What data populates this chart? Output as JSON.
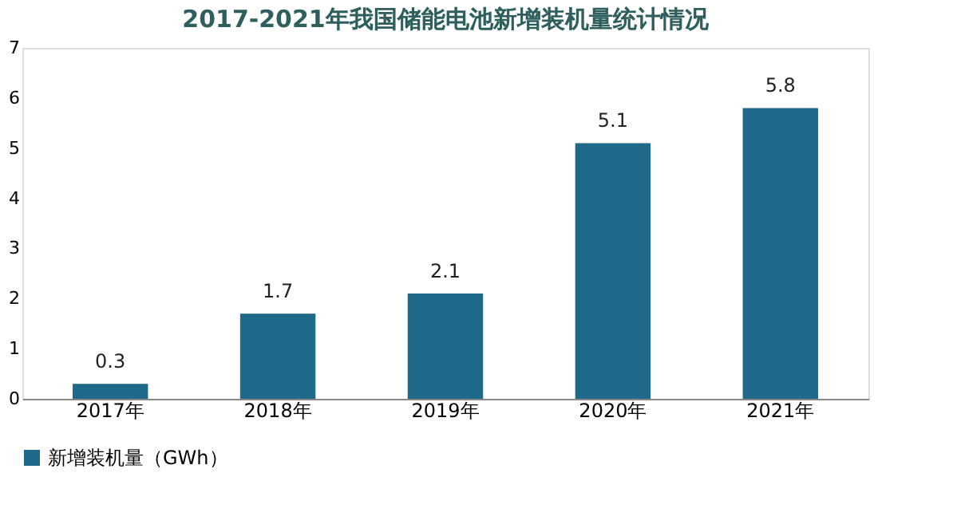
{
  "chart_data": {
    "type": "bar",
    "title": "2017-2021年我国储能电池新增装机量统计情况",
    "categories": [
      "2017年",
      "2018年",
      "2019年",
      "2020年",
      "2021年"
    ],
    "series": [
      {
        "name": "新增装机量（GWh）",
        "color": "#1f6a8a",
        "values": [
          0.3,
          1.7,
          2.1,
          5.1,
          5.8
        ]
      }
    ],
    "ylim": [
      0,
      7
    ],
    "yticks": [
      0,
      1,
      2,
      3,
      4,
      5,
      6,
      7
    ],
    "grid": false,
    "data_labels": true,
    "legend": "bottom"
  }
}
